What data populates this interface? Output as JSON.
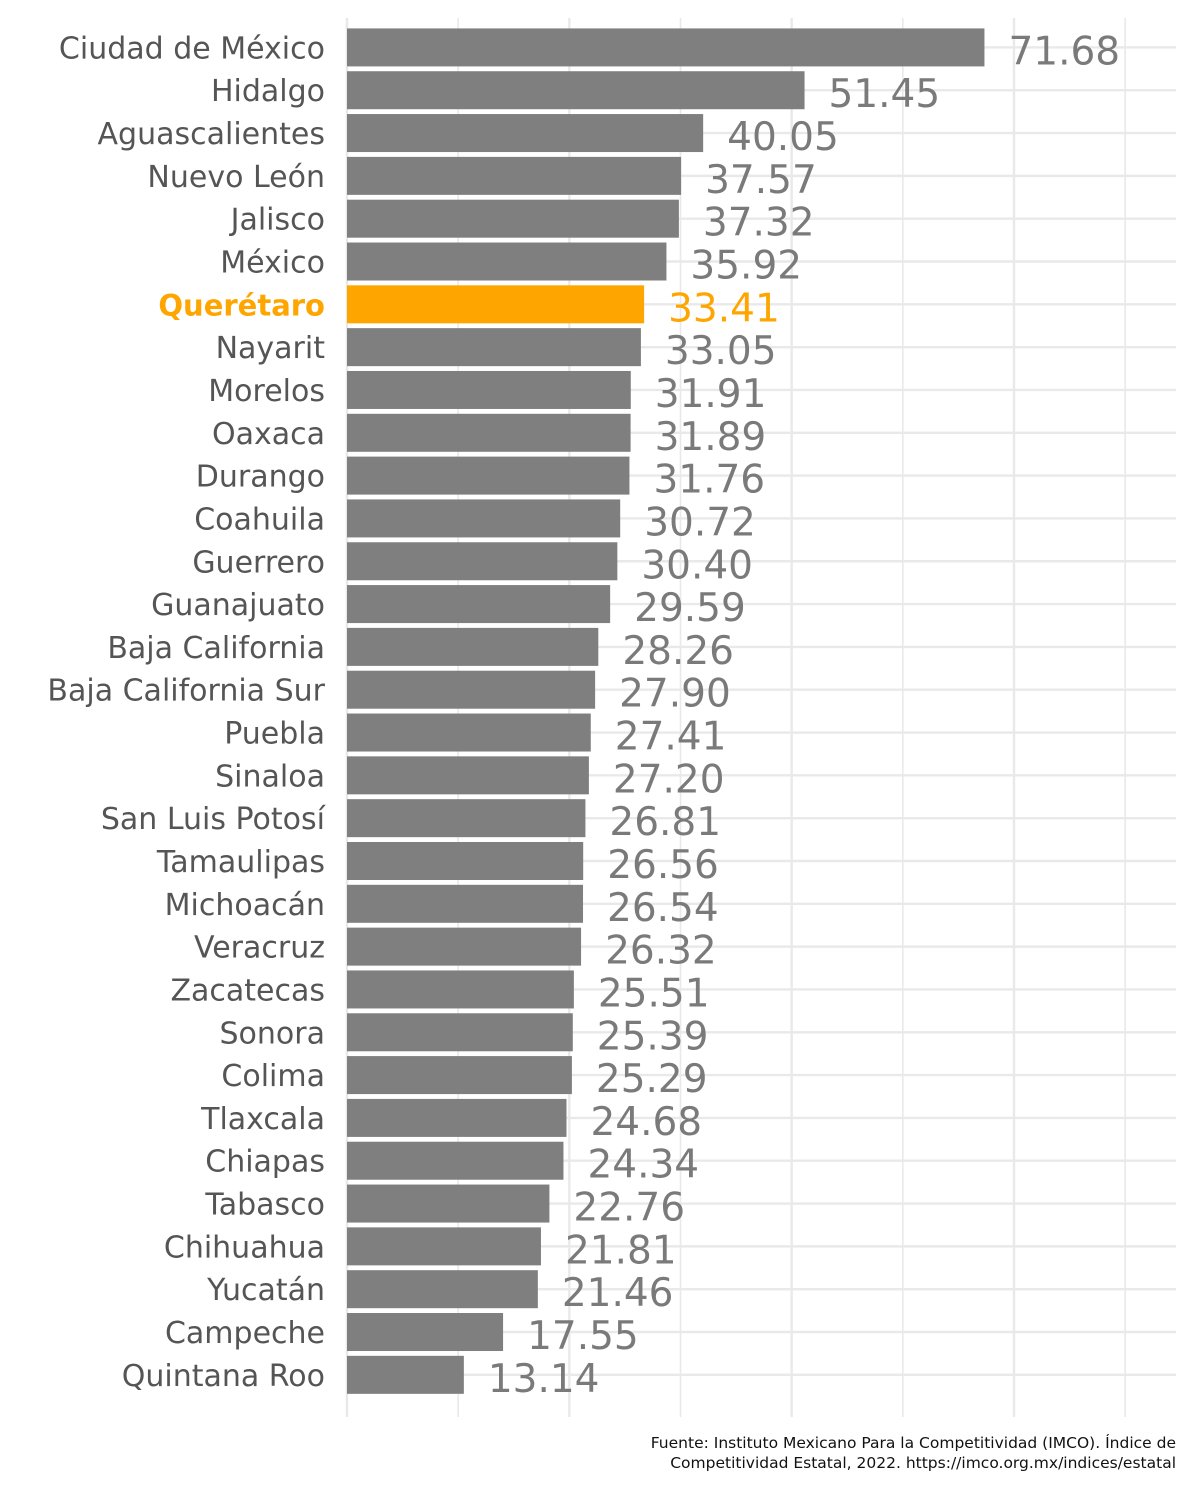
{
  "colors": {
    "bar": "#7f7f7f",
    "highlight": "#ffa500",
    "label": "#555555",
    "value": "#7a7a7a",
    "grid": "#e9e9e9"
  },
  "caption": {
    "line1": "Fuente: Instituto Mexicano Para la Competitividad (IMCO). Índice de",
    "line2": "Competitividad Estatal, 2022. https://imco.org.mx/indices/estatal"
  },
  "chart_data": {
    "type": "bar",
    "orientation": "horizontal",
    "title": "",
    "xlabel": "",
    "ylabel": "",
    "grid": true,
    "x_range": [
      0,
      75
    ],
    "highlight": "Querétaro",
    "categories": [
      "Ciudad de México",
      "Hidalgo",
      "Aguascalientes",
      "Nuevo León",
      "Jalisco",
      "México",
      "Querétaro",
      "Nayarit",
      "Morelos",
      "Oaxaca",
      "Durango",
      "Coahuila",
      "Guerrero",
      "Guanajuato",
      "Baja California",
      "Baja California Sur",
      "Puebla",
      "Sinaloa",
      "San Luis Potosí",
      "Tamaulipas",
      "Michoacán",
      "Veracruz",
      "Zacatecas",
      "Sonora",
      "Colima",
      "Tlaxcala",
      "Chiapas",
      "Tabasco",
      "Chihuahua",
      "Yucatán",
      "Campeche",
      "Quintana Roo"
    ],
    "values": [
      71.68,
      51.45,
      40.05,
      37.57,
      37.32,
      35.92,
      33.41,
      33.05,
      31.91,
      31.89,
      31.76,
      30.72,
      30.4,
      29.59,
      28.26,
      27.9,
      27.41,
      27.2,
      26.81,
      26.56,
      26.54,
      26.32,
      25.51,
      25.39,
      25.29,
      24.68,
      24.34,
      22.76,
      21.81,
      21.46,
      17.55,
      13.14
    ],
    "value_labels": [
      "71.68",
      "51.45",
      "40.05",
      "37.57",
      "37.32",
      "35.92",
      "33.41",
      "33.05",
      "31.91",
      "31.89",
      "31.76",
      "30.72",
      "30.40",
      "29.59",
      "28.26",
      "27.90",
      "27.41",
      "27.20",
      "26.81",
      "26.56",
      "26.54",
      "26.32",
      "25.51",
      "25.39",
      "25.29",
      "24.68",
      "24.34",
      "22.76",
      "21.81",
      "21.46",
      "17.55",
      "13.14"
    ]
  }
}
